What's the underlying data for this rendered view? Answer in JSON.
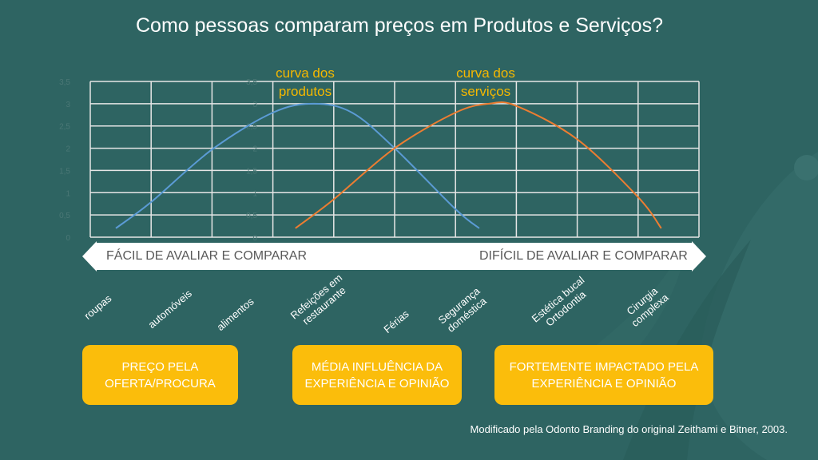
{
  "title": "Como pessoas comparam preços em Produtos e Serviços?",
  "colors": {
    "background": "#2e6462",
    "products_curve": "#5b9bd5",
    "services_curve": "#ed7d31",
    "accent": "#fbbd0b",
    "curve_label": "#f5b800"
  },
  "chart_data": {
    "type": "line",
    "title": "",
    "ylim": [
      0,
      3.5
    ],
    "yticks": [
      "0",
      "0,5",
      "1",
      "1,5",
      "2",
      "2,5",
      "3",
      "3,5"
    ],
    "xlim": [
      0,
      10
    ],
    "grid": true,
    "series": [
      {
        "name": "curva dos produtos",
        "x": [
          0.42,
          1,
          2,
          3,
          3.67,
          4.3,
          5,
          6,
          6.39
        ],
        "y": [
          0.2,
          0.79,
          1.97,
          2.8,
          3.0,
          2.8,
          2.0,
          0.63,
          0.2
        ]
      },
      {
        "name": "curva dos serviços",
        "x": [
          3.37,
          4,
          5,
          6,
          6.55,
          7,
          8,
          9,
          9.38
        ],
        "y": [
          0.2,
          0.85,
          2.0,
          2.8,
          3.0,
          2.95,
          2.2,
          0.9,
          0.2
        ]
      }
    ]
  },
  "curve_labels": {
    "products": "curva dos produtos",
    "products_l1": "curva dos",
    "products_l2": "produtos",
    "services_l1": "curva dos",
    "services_l2": "serviços"
  },
  "arrow": {
    "left": "FÁCIL DE AVALIAR E COMPARAR",
    "right": "DIFÍCIL DE AVALIAR E COMPARAR"
  },
  "categories": [
    {
      "l1": "roupas",
      "l2": ""
    },
    {
      "l1": "automóveis",
      "l2": ""
    },
    {
      "l1": "alimentos",
      "l2": ""
    },
    {
      "l1": "Refeições em",
      "l2": "restaurante"
    },
    {
      "l1": "Férias",
      "l2": ""
    },
    {
      "l1": "Segurança",
      "l2": "doméstica"
    },
    {
      "l1": "Estética bucal",
      "l2": "Ortodontia"
    },
    {
      "l1": "Cirurgia",
      "l2": "complexa"
    }
  ],
  "boxes": [
    {
      "l1": "PREÇO PELA",
      "l2": "OFERTA/PROCURA"
    },
    {
      "l1": "MÉDIA INFLUÊNCIA DA",
      "l2": "EXPERIÊNCIA E OPINIÃO"
    },
    {
      "l1": "FORTEMENTE IMPACTADO PELA",
      "l2": "EXPERIÊNCIA E OPINIÃO"
    }
  ],
  "credit": "Modificado pela Odonto Branding do original Zeithami e Bitner, 2003."
}
